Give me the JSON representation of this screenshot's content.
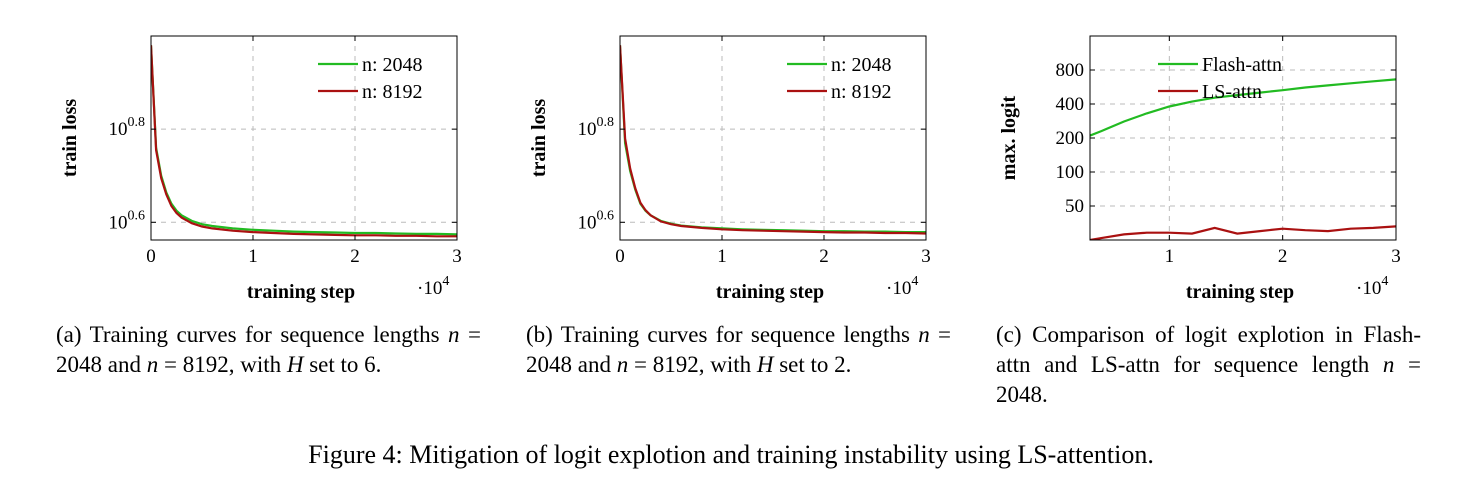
{
  "figure_caption": "Figure 4: Mitigation of logit explotion and training instability using LS-attention.",
  "captions": {
    "a": {
      "label": "(a)",
      "t1": " Training curves for sequence lengths ",
      "n": "n",
      "eq": " = ",
      "v1": "2048",
      "and": " and ",
      "v2": "8192",
      "t2": ", with ",
      "H": "H",
      "t3": " set to 6."
    },
    "b": {
      "label": "(b)",
      "t1": " Training curves for sequence lengths ",
      "n": "n",
      "eq": " = ",
      "v1": "2048",
      "and": " and ",
      "v2": "8192",
      "t2": ", with ",
      "H": "H",
      "t3": " set to 2."
    },
    "c": {
      "label": "(c)",
      "t1": " Comparison of logit explotion in Flash-attn and LS-attn for sequence length ",
      "n": "n",
      "eq": " = ",
      "v1": "2048",
      "t2": "."
    }
  },
  "colors": {
    "green": "#22bb22",
    "red": "#aa1111",
    "grid": "#bbbbbb"
  },
  "chart_data": [
    {
      "id": "a",
      "type": "line",
      "xlabel": "training step",
      "ylabel": "train loss",
      "x_multiplier": "·10^4",
      "xlim": [
        0,
        30000
      ],
      "ylim_log10": [
        0.562,
        1.0
      ],
      "y_scale": "log",
      "xticks": [
        0,
        10000,
        20000,
        30000
      ],
      "xtick_labels": [
        "0",
        "1",
        "2",
        "3"
      ],
      "yticks_log10": [
        0.6,
        0.8
      ],
      "ytick_labels": [
        {
          "base": "10",
          "exp": "0.6"
        },
        {
          "base": "10",
          "exp": "0.8"
        }
      ],
      "grid": true,
      "legend_position": "top-right",
      "series": [
        {
          "name": "n: 2048",
          "color": "#22bb22",
          "x": [
            0,
            500,
            1000,
            1500,
            2000,
            2500,
            3000,
            4000,
            5000,
            6000,
            8000,
            10000,
            12000,
            14000,
            16000,
            18000,
            20000,
            22000,
            24000,
            26000,
            28000,
            30000
          ],
          "y_log10": [
            0.98,
            0.76,
            0.7,
            0.664,
            0.64,
            0.625,
            0.615,
            0.603,
            0.596,
            0.592,
            0.587,
            0.584,
            0.582,
            0.58,
            0.579,
            0.578,
            0.577,
            0.577,
            0.576,
            0.575,
            0.575,
            0.574
          ]
        },
        {
          "name": "n: 8192",
          "color": "#aa1111",
          "x": [
            0,
            500,
            1000,
            1500,
            2000,
            2500,
            3000,
            4000,
            5000,
            6000,
            8000,
            10000,
            12000,
            14000,
            16000,
            18000,
            20000,
            22000,
            24000,
            26000,
            28000,
            30000
          ],
          "y_log10": [
            0.98,
            0.755,
            0.695,
            0.66,
            0.635,
            0.62,
            0.61,
            0.598,
            0.591,
            0.587,
            0.582,
            0.579,
            0.577,
            0.575,
            0.574,
            0.573,
            0.572,
            0.572,
            0.571,
            0.571,
            0.57,
            0.57
          ]
        }
      ]
    },
    {
      "id": "b",
      "type": "line",
      "xlabel": "training step",
      "ylabel": "train loss",
      "x_multiplier": "·10^4",
      "xlim": [
        0,
        30000
      ],
      "ylim_log10": [
        0.562,
        1.0
      ],
      "y_scale": "log",
      "xticks": [
        0,
        10000,
        20000,
        30000
      ],
      "xtick_labels": [
        "0",
        "1",
        "2",
        "3"
      ],
      "yticks_log10": [
        0.6,
        0.8
      ],
      "ytick_labels": [
        {
          "base": "10",
          "exp": "0.6"
        },
        {
          "base": "10",
          "exp": "0.8"
        }
      ],
      "grid": true,
      "legend_position": "top-right",
      "series": [
        {
          "name": "n: 2048",
          "color": "#22bb22",
          "x": [
            0,
            500,
            1000,
            1500,
            2000,
            2500,
            3000,
            4000,
            5000,
            6000,
            8000,
            10000,
            12000,
            14000,
            16000,
            18000,
            20000,
            22000,
            24000,
            26000,
            28000,
            30000
          ],
          "y_log10": [
            0.98,
            0.77,
            0.71,
            0.67,
            0.64,
            0.625,
            0.615,
            0.603,
            0.597,
            0.593,
            0.589,
            0.587,
            0.585,
            0.584,
            0.583,
            0.582,
            0.581,
            0.581,
            0.58,
            0.58,
            0.579,
            0.579
          ]
        },
        {
          "name": "n: 8192",
          "color": "#aa1111",
          "x": [
            0,
            500,
            1000,
            1500,
            2000,
            2500,
            3000,
            4000,
            5000,
            6000,
            8000,
            10000,
            12000,
            14000,
            16000,
            18000,
            20000,
            22000,
            24000,
            26000,
            28000,
            30000
          ],
          "y_log10": [
            0.98,
            0.78,
            0.715,
            0.673,
            0.642,
            0.626,
            0.615,
            0.602,
            0.596,
            0.592,
            0.588,
            0.585,
            0.583,
            0.582,
            0.581,
            0.58,
            0.579,
            0.578,
            0.578,
            0.577,
            0.577,
            0.576
          ]
        }
      ]
    },
    {
      "id": "c",
      "type": "line",
      "xlabel": "training step",
      "ylabel": "max. logit",
      "x_multiplier": "·10^4",
      "xlim": [
        3000,
        30000
      ],
      "ylim": [
        25,
        1600
      ],
      "y_scale": "log",
      "xticks": [
        10000,
        20000,
        30000
      ],
      "xtick_labels": [
        "1",
        "2",
        "3"
      ],
      "yticks": [
        50,
        100,
        200,
        400,
        800
      ],
      "ytick_labels": [
        "50",
        "100",
        "200",
        "400",
        "800"
      ],
      "grid": true,
      "legend_position": "top-left",
      "series": [
        {
          "name": "Flash-attn",
          "color": "#22bb22",
          "x": [
            3000,
            4000,
            6000,
            8000,
            10000,
            12000,
            14000,
            16000,
            18000,
            20000,
            22000,
            24000,
            26000,
            28000,
            30000
          ],
          "y": [
            210,
            230,
            280,
            330,
            380,
            420,
            455,
            480,
            505,
            530,
            560,
            585,
            610,
            635,
            660
          ]
        },
        {
          "name": "LS-attn",
          "color": "#aa1111",
          "x": [
            3000,
            4000,
            6000,
            8000,
            10000,
            12000,
            14000,
            16000,
            18000,
            20000,
            22000,
            24000,
            26000,
            28000,
            30000
          ],
          "y": [
            25,
            26,
            28,
            29,
            29,
            28.5,
            32,
            28.5,
            30,
            31.5,
            30.5,
            30,
            31.5,
            32,
            33
          ]
        }
      ]
    }
  ]
}
